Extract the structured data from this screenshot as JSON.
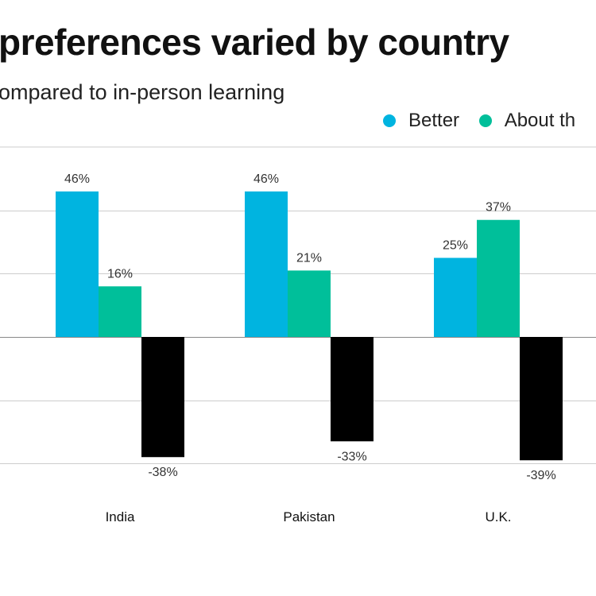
{
  "title": "preferences varied by country",
  "subtitle": "ompared to in-person learning",
  "colors": {
    "better": "#00b4e0",
    "about_the_same": "#00bf9a",
    "worse": "#000000",
    "grid": "#cccccc",
    "axis": "#888888"
  },
  "legend": [
    "Better",
    "About th"
  ],
  "chart_data": {
    "type": "bar",
    "categories": [
      "India",
      "Pakistan",
      "U.K."
    ],
    "series": [
      {
        "name": "Better",
        "values": [
          46,
          46,
          25
        ],
        "labels": [
          "46%",
          "46%",
          "25%"
        ]
      },
      {
        "name": "About th",
        "values": [
          16,
          21,
          37
        ],
        "labels": [
          "16%",
          "21%",
          "37%"
        ]
      },
      {
        "name": "",
        "values": [
          -38,
          -33,
          -39
        ],
        "labels": [
          "-38%",
          "-33%",
          "-39%"
        ]
      }
    ],
    "ylim": [
      -40,
      60
    ],
    "grid": true,
    "legend_position": "top-right"
  }
}
